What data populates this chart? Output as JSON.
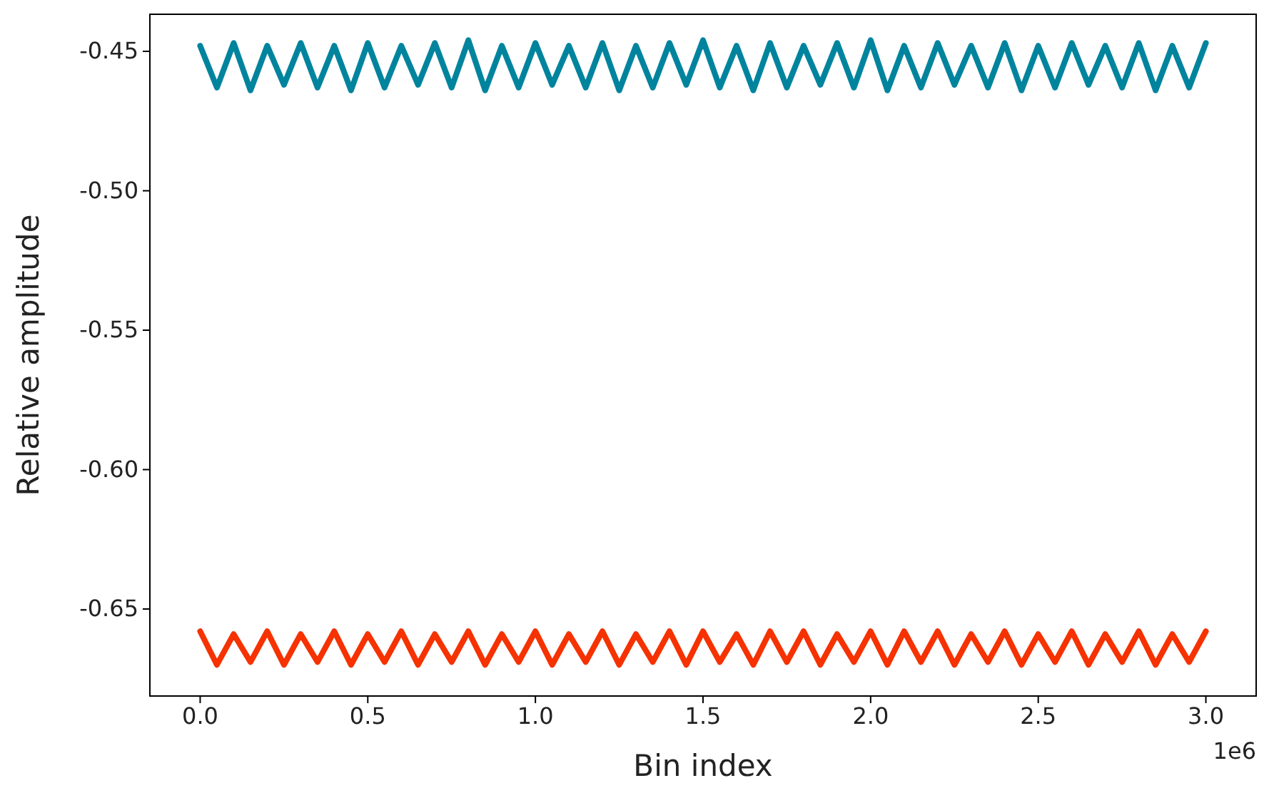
{
  "chart_data": {
    "type": "line",
    "xlabel": "Bin index",
    "ylabel": "Relative amplitude",
    "x": [
      0,
      0.05,
      0.1,
      0.15,
      0.2,
      0.25,
      0.3,
      0.35,
      0.4,
      0.45,
      0.5,
      0.55,
      0.6,
      0.65,
      0.7,
      0.75,
      0.8,
      0.85,
      0.9,
      0.95,
      1,
      1.05,
      1.1,
      1.15,
      1.2,
      1.25,
      1.3,
      1.35,
      1.4,
      1.45,
      1.5,
      1.55,
      1.6,
      1.65,
      1.7,
      1.75,
      1.8,
      1.85,
      1.9,
      1.95,
      2,
      2.05,
      2.1,
      2.15,
      2.2,
      2.25,
      2.3,
      2.35,
      2.4,
      2.45,
      2.5,
      2.55,
      2.6,
      2.65,
      2.7,
      2.75,
      2.8,
      2.85,
      2.9,
      2.95,
      3
    ],
    "series": [
      {
        "color": "#00849e",
        "values": [
          -0.448,
          -0.463,
          -0.447,
          -0.464,
          -0.448,
          -0.462,
          -0.447,
          -0.463,
          -0.448,
          -0.464,
          -0.447,
          -0.463,
          -0.448,
          -0.462,
          -0.447,
          -0.463,
          -0.446,
          -0.464,
          -0.448,
          -0.463,
          -0.447,
          -0.462,
          -0.448,
          -0.463,
          -0.447,
          -0.464,
          -0.448,
          -0.463,
          -0.447,
          -0.462,
          -0.446,
          -0.463,
          -0.448,
          -0.464,
          -0.447,
          -0.463,
          -0.448,
          -0.462,
          -0.447,
          -0.463,
          -0.446,
          -0.464,
          -0.448,
          -0.463,
          -0.447,
          -0.462,
          -0.448,
          -0.463,
          -0.447,
          -0.464,
          -0.448,
          -0.463,
          -0.447,
          -0.462,
          -0.448,
          -0.463,
          -0.447,
          -0.464,
          -0.448,
          -0.463,
          -0.447
        ]
      },
      {
        "color": "#f53200",
        "values": [
          -0.658,
          -0.67,
          -0.659,
          -0.669,
          -0.658,
          -0.67,
          -0.659,
          -0.669,
          -0.658,
          -0.67,
          -0.659,
          -0.669,
          -0.658,
          -0.67,
          -0.659,
          -0.669,
          -0.658,
          -0.67,
          -0.659,
          -0.669,
          -0.658,
          -0.67,
          -0.659,
          -0.669,
          -0.658,
          -0.67,
          -0.659,
          -0.669,
          -0.658,
          -0.67,
          -0.658,
          -0.669,
          -0.659,
          -0.67,
          -0.658,
          -0.669,
          -0.658,
          -0.67,
          -0.659,
          -0.669,
          -0.658,
          -0.67,
          -0.658,
          -0.669,
          -0.658,
          -0.67,
          -0.659,
          -0.669,
          -0.658,
          -0.67,
          -0.659,
          -0.669,
          -0.658,
          -0.67,
          -0.659,
          -0.669,
          -0.658,
          -0.67,
          -0.659,
          -0.669,
          -0.658
        ]
      }
    ],
    "xlim": [
      -0.15,
      3.15
    ],
    "xticks": [
      {
        "value": 0,
        "label": "0.0"
      },
      0.5,
      {
        "value": 1,
        "label": "1.0"
      },
      1.5,
      {
        "value": 2,
        "label": "2.0"
      },
      2.5,
      {
        "value": 3,
        "label": "3.0"
      }
    ],
    "ylim": [
      -0.6812,
      -0.4367
    ],
    "yticks": [
      {
        "value": -0.65,
        "label": "-0.65"
      },
      {
        "value": -0.6,
        "label": "-0.60"
      },
      {
        "value": -0.55,
        "label": "-0.55"
      },
      {
        "value": -0.5,
        "label": "-0.50"
      },
      {
        "value": -0.45,
        "label": "-0.45"
      }
    ],
    "annotations": [
      "1e6"
    ],
    "marker": "none",
    "line_style": "solid"
  }
}
